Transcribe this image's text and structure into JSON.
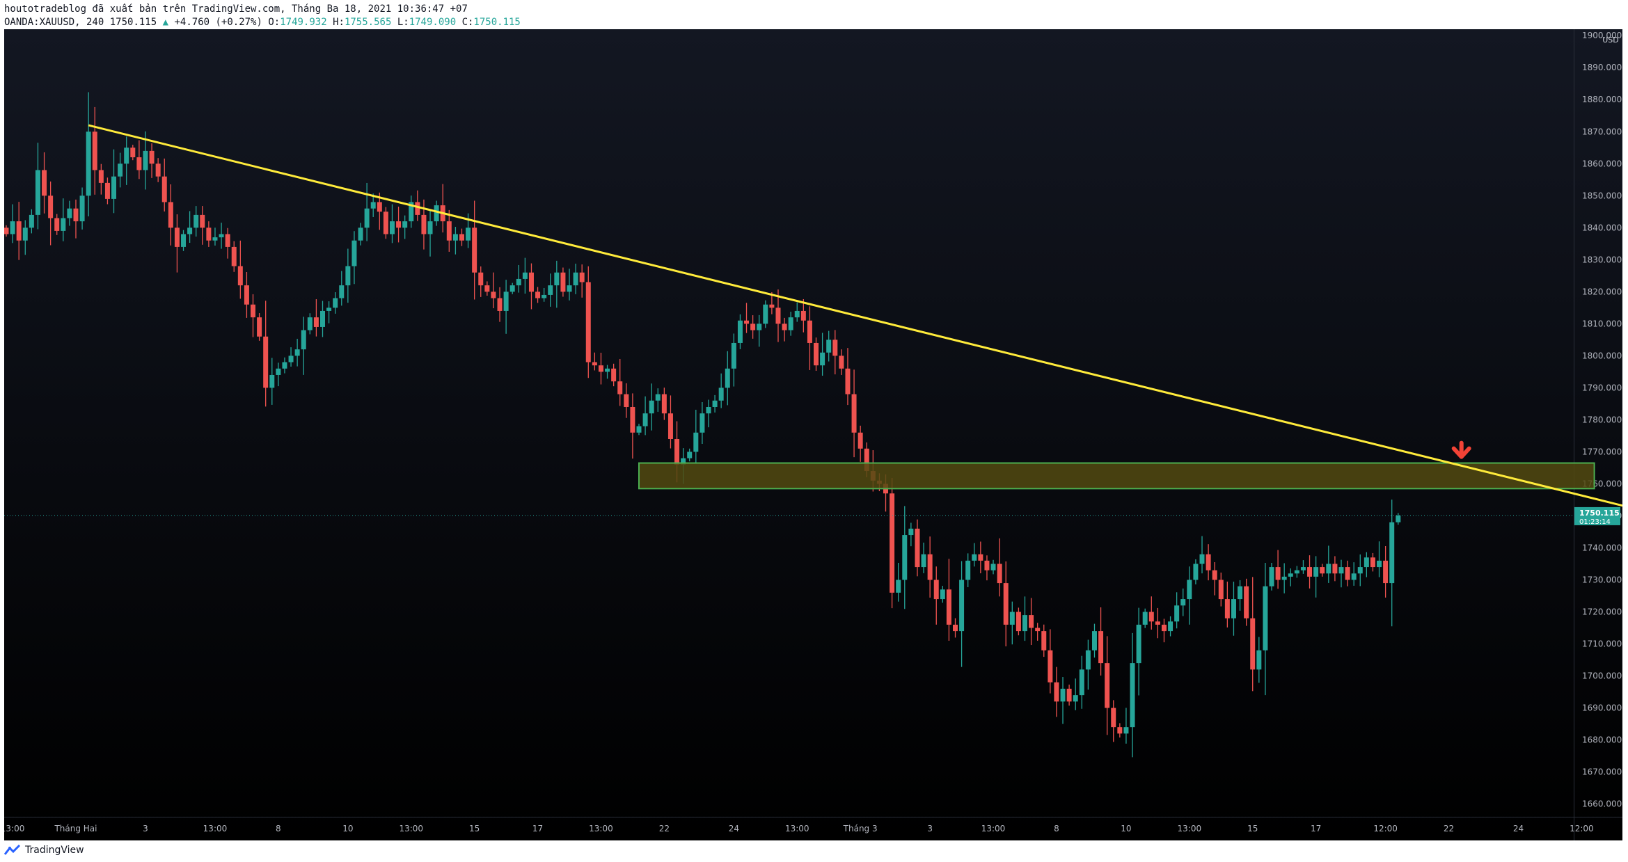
{
  "header": {
    "publish_line": "houtotradeblog đã xuất bản trên TradingView.com, Tháng Ba 18, 2021 10:36:47 +07",
    "symbol": "OANDA:XAUUSD, 240",
    "last": "1750.115",
    "change_arrow": "▲",
    "change": "+4.760 (+0.27%)",
    "open_label": "O:",
    "open": "1749.932",
    "high_label": "H:",
    "high": "1755.565",
    "low_label": "L:",
    "low": "1749.090",
    "close_label": "C:",
    "close": "1750.115"
  },
  "chart_data": {
    "type": "candlestick",
    "symbol": "OANDA:XAUUSD",
    "timeframe": "240",
    "currency": "USD",
    "y_range": [
      1656,
      1902
    ],
    "y_ticks": [
      "1900.000",
      "1890.000",
      "1880.000",
      "1870.000",
      "1860.000",
      "1850.000",
      "1840.000",
      "1830.000",
      "1820.000",
      "1810.000",
      "1800.000",
      "1790.000",
      "1780.000",
      "1770.000",
      "1760.000",
      "1750.000",
      "1740.000",
      "1730.000",
      "1720.000",
      "1710.000",
      "1700.000",
      "1690.000",
      "1680.000",
      "1670.000",
      "1660.000"
    ],
    "x_labels": [
      {
        "label": "13:00",
        "bar": 1
      },
      {
        "label": "Tháng Hai",
        "bar": 11
      },
      {
        "label": "3",
        "bar": 22
      },
      {
        "label": "13:00",
        "bar": 33
      },
      {
        "label": "8",
        "bar": 43
      },
      {
        "label": "10",
        "bar": 54
      },
      {
        "label": "13:00",
        "bar": 64
      },
      {
        "label": "15",
        "bar": 74
      },
      {
        "label": "17",
        "bar": 84
      },
      {
        "label": "13:00",
        "bar": 94
      },
      {
        "label": "22",
        "bar": 104
      },
      {
        "label": "24",
        "bar": 115
      },
      {
        "label": "13:00",
        "bar": 125
      },
      {
        "label": "Tháng 3",
        "bar": 135
      },
      {
        "label": "3",
        "bar": 146
      },
      {
        "label": "13:00",
        "bar": 156
      },
      {
        "label": "8",
        "bar": 166
      },
      {
        "label": "10",
        "bar": 177
      },
      {
        "label": "13:00",
        "bar": 187
      },
      {
        "label": "15",
        "bar": 197
      },
      {
        "label": "17",
        "bar": 207
      },
      {
        "label": "12:00",
        "bar": 218
      },
      {
        "label": "22",
        "bar": 228
      },
      {
        "label": "24",
        "bar": 239
      },
      {
        "label": "12:00",
        "bar": 249
      }
    ],
    "closes": [
      1838,
      1842,
      1836,
      1840,
      1844,
      1858,
      1850,
      1843,
      1839,
      1843,
      1846,
      1842,
      1850,
      1870,
      1858,
      1854,
      1849,
      1856,
      1860,
      1865,
      1862,
      1858,
      1864,
      1860,
      1856,
      1848,
      1840,
      1834,
      1838,
      1840,
      1844,
      1840,
      1836,
      1837,
      1838,
      1834,
      1828,
      1822,
      1816,
      1812,
      1806,
      1790,
      1794,
      1796,
      1798,
      1800,
      1802,
      1808,
      1812,
      1809,
      1814,
      1815,
      1818,
      1822,
      1828,
      1836,
      1840,
      1846,
      1848,
      1845,
      1838,
      1842,
      1840,
      1842,
      1848,
      1844,
      1838,
      1842,
      1847,
      1842,
      1836,
      1838,
      1836,
      1840,
      1826,
      1822,
      1820,
      1818,
      1814,
      1820,
      1822,
      1824,
      1826,
      1820,
      1818,
      1819,
      1822,
      1826,
      1820,
      1822,
      1826,
      1823,
      1798,
      1797,
      1795,
      1796,
      1792,
      1788,
      1784,
      1776,
      1778,
      1782,
      1786,
      1788,
      1782,
      1774,
      1766,
      1768,
      1770,
      1776,
      1782,
      1784,
      1786,
      1790,
      1796,
      1804,
      1811,
      1810,
      1808,
      1810,
      1816,
      1815,
      1810,
      1808,
      1812,
      1814,
      1811,
      1804,
      1797,
      1801,
      1805,
      1800,
      1796,
      1788,
      1776,
      1771,
      1764,
      1761,
      1760,
      1757,
      1726,
      1730,
      1744,
      1746,
      1734,
      1738,
      1730,
      1724,
      1727,
      1716,
      1714,
      1730,
      1736,
      1738,
      1736,
      1733,
      1735,
      1729,
      1716,
      1720,
      1714,
      1719,
      1715,
      1714,
      1708,
      1698,
      1692,
      1696,
      1692,
      1694,
      1702,
      1708,
      1714,
      1704,
      1690,
      1684,
      1682,
      1684,
      1704,
      1716,
      1720,
      1717,
      1716,
      1714,
      1717,
      1722,
      1724,
      1730,
      1735,
      1738,
      1733,
      1730,
      1724,
      1718,
      1724,
      1728,
      1718,
      1702,
      1708,
      1728,
      1734,
      1730,
      1731,
      1732,
      1733,
      1734,
      1731,
      1734,
      1732,
      1735,
      1732,
      1734,
      1730,
      1732,
      1734,
      1737,
      1734,
      1736,
      1729,
      1748,
      1750.115
    ],
    "last_price": "1750.115",
    "countdown": "01:23:14",
    "trendline": {
      "bar_start": 13,
      "price_start": 1872,
      "bar_end": 264,
      "price_end": 1749
    },
    "zone": {
      "bar_start": 100,
      "bar_end": 251,
      "price_high": 1766.5,
      "price_low": 1758.5
    },
    "arrow": {
      "bar": 230,
      "price": 1768,
      "direction": "down"
    },
    "colors": {
      "background_top": "#131722",
      "background_bottom": "#000000",
      "up": "#26a69a",
      "down": "#ef5350",
      "trendline": "#ffeb3b",
      "zone_border": "#4caf50",
      "zone_fill": "#524a10",
      "arrow": "#f44336",
      "axis_text": "#b2b5be",
      "price_tag": "#26a69a",
      "last_line": "#26a69a"
    },
    "grid": false,
    "legend": "none"
  },
  "footer": {
    "brand": "TradingView"
  }
}
